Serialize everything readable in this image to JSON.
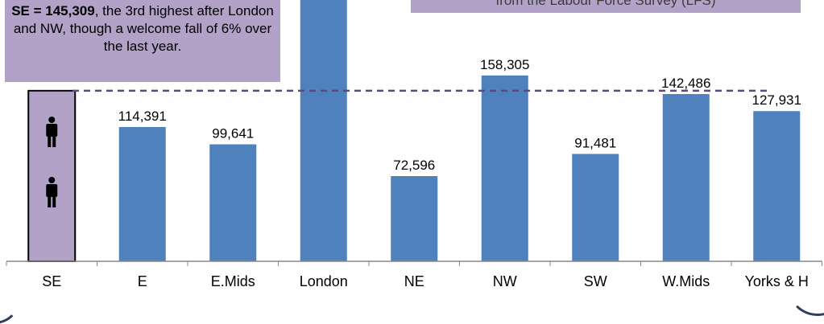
{
  "callout": {
    "headline": "SE = 145,309",
    "body": ", the 3rd highest after London and NW, though a welcome fall of 6% over the last year."
  },
  "top_note": {
    "text": "from the Labour Force Survey (LFS)"
  },
  "chart_data": {
    "type": "bar",
    "categories": [
      "SE",
      "E",
      "E.Mids",
      "London",
      "NE",
      "NW",
      "SW",
      "W.Mids",
      "Yorks & H"
    ],
    "values": [
      145309,
      114391,
      99641,
      null,
      72596,
      158305,
      91481,
      142486,
      127931
    ],
    "data_labels": [
      "",
      "114,391",
      "99,641",
      "",
      "72,596",
      "158,305",
      "91,481",
      "142,486",
      "127,931"
    ],
    "highlight_category": "SE",
    "reference_line": {
      "value": 145309,
      "style": "dashed",
      "color": "#5f497a"
    },
    "bar_color": "#4f81bd",
    "highlight_fill": "#b3a2c7",
    "icon": "person-icon",
    "ylim": [
      0,
      200000
    ]
  }
}
